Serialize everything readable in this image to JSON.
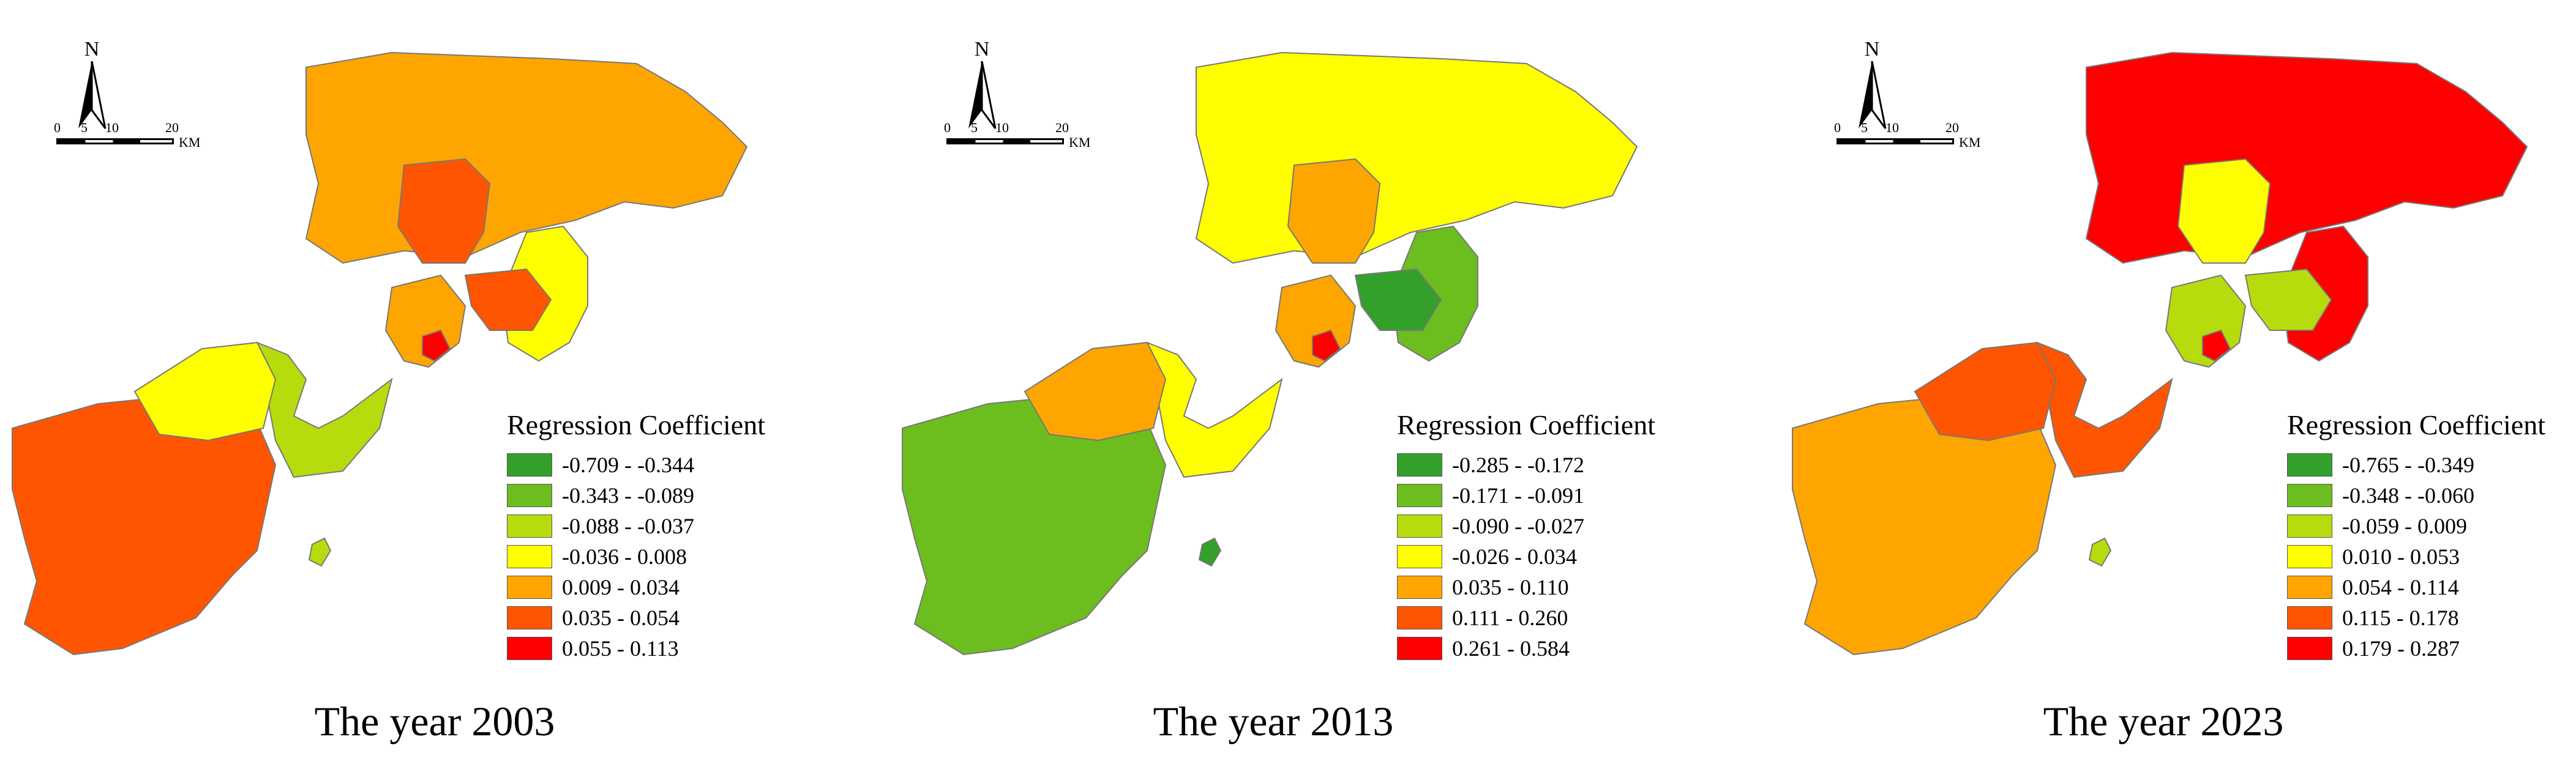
{
  "legend_title": "Regression Coefficient",
  "north_label": "N",
  "scale": {
    "ticks": [
      "0",
      "5",
      "10",
      "20"
    ],
    "unit": "KM"
  },
  "class_colors": [
    "#33a02c",
    "#6cbd1e",
    "#b7dc0e",
    "#ffff00",
    "#ffa500",
    "#ff5500",
    "#ff0000"
  ],
  "panels": [
    {
      "title": "The year 2003",
      "legend": [
        "-0.709 - -0.344",
        "-0.343 - -0.089",
        "-0.088 - -0.037",
        "-0.036 - 0.008",
        "0.009 - 0.034",
        "0.035 - 0.054",
        "0.055 - 0.113"
      ],
      "region_classes": {
        "north": 4,
        "center": 5,
        "east": 3,
        "east_inner": 5,
        "urban": 4,
        "core": 6,
        "west_upper": 2,
        "west_lower": 5,
        "west_far": 3,
        "island": 2
      }
    },
    {
      "title": "The year 2013",
      "legend": [
        "-0.285 - -0.172",
        "-0.171 - -0.091",
        "-0.090 - -0.027",
        "-0.026 - 0.034",
        "0.035 - 0.110",
        "0.111 - 0.260",
        "0.261 - 0.584"
      ],
      "region_classes": {
        "north": 3,
        "center": 4,
        "east": 1,
        "east_inner": 0,
        "urban": 4,
        "core": 6,
        "west_upper": 3,
        "west_lower": 1,
        "west_far": 4,
        "island": 0
      }
    },
    {
      "title": "The year 2023",
      "legend": [
        "-0.765 - -0.349",
        "-0.348 - -0.060",
        "-0.059 - 0.009",
        "0.010 - 0.053",
        "0.054 - 0.114",
        "0.115 - 0.178",
        "0.179 - 0.287"
      ],
      "region_classes": {
        "north": 6,
        "center": 3,
        "east": 6,
        "east_inner": 2,
        "urban": 2,
        "core": 6,
        "west_upper": 5,
        "west_lower": 4,
        "west_far": 5,
        "island": 2
      }
    }
  ]
}
